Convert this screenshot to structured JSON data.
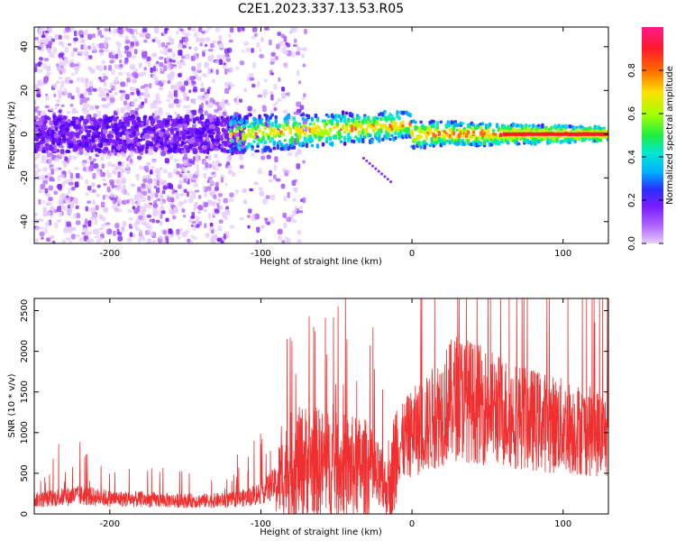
{
  "figure_title": "C2E1.2023.337.13.53.R05",
  "colors": {
    "snr_line": "#f03030",
    "axis": "#000000",
    "colormap": [
      "#e6ccff",
      "#b066ff",
      "#7a1cff",
      "#4e00f5",
      "#2a30ff",
      "#00b0ff",
      "#00e8d0",
      "#20ee40",
      "#a8ff00",
      "#ffe000",
      "#ff6a00",
      "#ff1a2a",
      "#ff1a8c"
    ]
  },
  "chart_data": [
    {
      "type": "heatmap",
      "xlabel": "Height of straight line (km)",
      "ylabel": "Frequency (Hz)",
      "xlim": [
        -250,
        130
      ],
      "ylim": [
        -50,
        49
      ],
      "xticks": [
        -200,
        -100,
        0,
        100
      ],
      "yticks": [
        -40,
        -20,
        0,
        20,
        40
      ],
      "grid": false,
      "colorbar": {
        "label": "Normalized spectral amplitude",
        "range": [
          0,
          1
        ],
        "ticks": [
          0.0,
          0.2,
          0.4,
          0.6,
          0.8
        ]
      },
      "features": {
        "noise_region_x": [
          -250,
          -85
        ],
        "signal_band_x": [
          -120,
          130
        ],
        "signal_center_freq_hz": 0,
        "saturated_line_from_x": 60
      }
    },
    {
      "type": "line",
      "xlabel": "Height of straight line (km)",
      "ylabel": "SNR (10 * v/v)",
      "xlim": [
        -250,
        130
      ],
      "ylim": [
        0,
        2650
      ],
      "xticks": [
        -200,
        -100,
        0,
        100
      ],
      "yticks": [
        0,
        500,
        1000,
        1500,
        2000,
        2500
      ],
      "grid": false,
      "series": [
        {
          "envelope_x": [
            -250,
            -220,
            -200,
            -150,
            -120,
            -110,
            -100,
            -90,
            -80,
            -70,
            -60,
            -50,
            -40,
            -30,
            -20,
            -15,
            -10,
            0,
            10,
            20,
            30,
            40,
            50,
            60,
            80,
            100,
            130
          ],
          "envelope_y": [
            170,
            230,
            190,
            160,
            170,
            200,
            260,
            380,
            600,
            650,
            620,
            600,
            580,
            560,
            380,
            300,
            800,
            1000,
            1100,
            1300,
            1450,
            1380,
            1320,
            1260,
            1160,
            1080,
            970
          ]
        }
      ]
    }
  ]
}
